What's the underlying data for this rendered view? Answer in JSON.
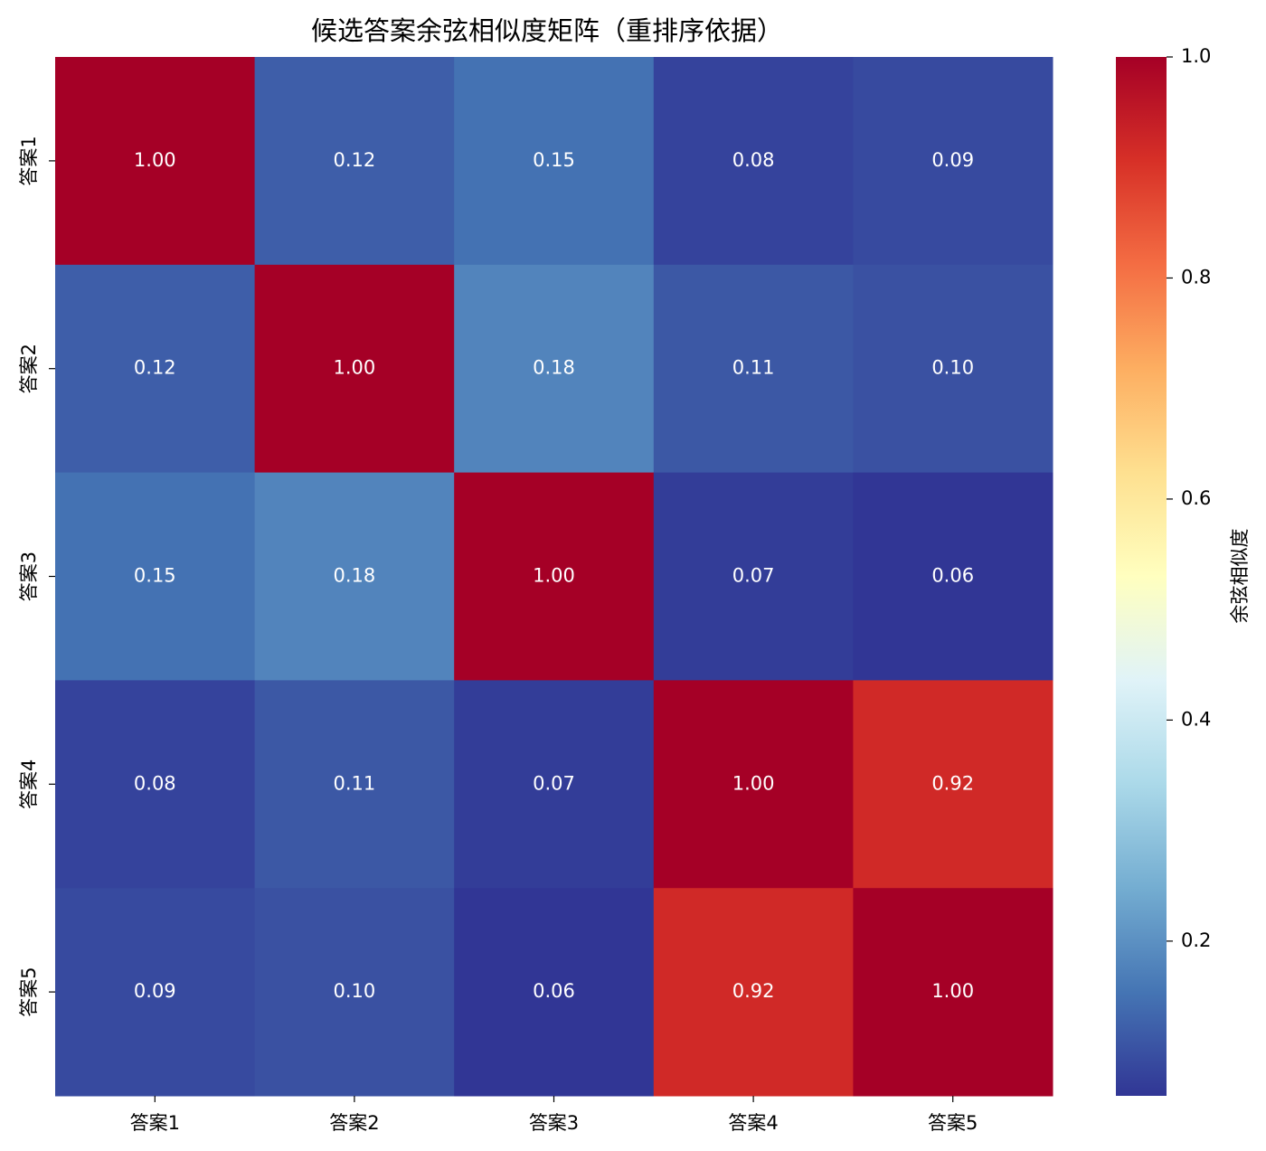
{
  "chart_data": {
    "type": "heatmap",
    "title": "候选答案余弦相似度矩阵（重排序依据）",
    "x": [
      "答案1",
      "答案2",
      "答案3",
      "答案4",
      "答案5"
    ],
    "y": [
      "答案1",
      "答案2",
      "答案3",
      "答案4",
      "答案5"
    ],
    "values": [
      [
        1.0,
        0.12,
        0.15,
        0.08,
        0.09
      ],
      [
        0.12,
        1.0,
        0.18,
        0.11,
        0.1
      ],
      [
        0.15,
        0.18,
        1.0,
        0.07,
        0.06
      ],
      [
        0.08,
        0.11,
        0.07,
        1.0,
        0.92
      ],
      [
        0.09,
        0.1,
        0.06,
        0.92,
        1.0
      ]
    ],
    "value_labels": [
      [
        "1.00",
        "0.12",
        "0.15",
        "0.08",
        "0.09"
      ],
      [
        "0.12",
        "1.00",
        "0.18",
        "0.11",
        "0.10"
      ],
      [
        "0.15",
        "0.18",
        "1.00",
        "0.07",
        "0.06"
      ],
      [
        "0.08",
        "0.11",
        "0.07",
        "1.00",
        "0.92"
      ],
      [
        "0.09",
        "0.10",
        "0.06",
        "0.92",
        "1.00"
      ]
    ],
    "colorbar_label": "余弦相似度",
    "clim": [
      0.06,
      1.0
    ],
    "cticks": [
      0.2,
      0.4,
      0.6,
      0.8,
      {
        "value": 1,
        "label": "1.0"
      }
    ],
    "colormap": [
      "#313695",
      "#4575b4",
      "#74add1",
      "#abd9e9",
      "#e0f3f8",
      "#ffffbf",
      "#fee090",
      "#fdae61",
      "#f46d43",
      "#d73027",
      "#a50026"
    ],
    "annotation_color": "#ffffff"
  }
}
